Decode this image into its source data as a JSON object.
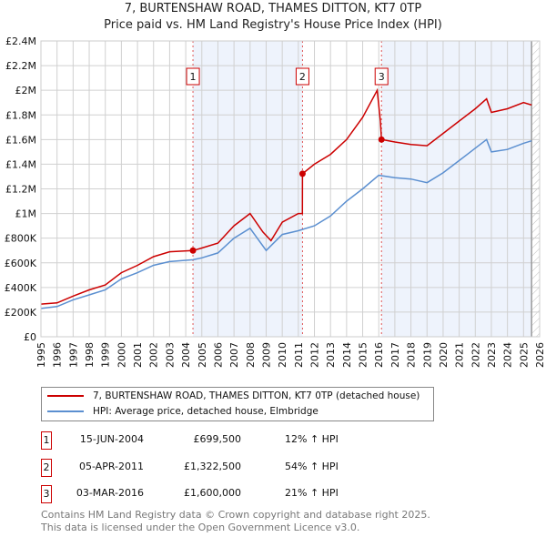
{
  "chart_data": {
    "type": "line",
    "title": "7, BURTENSHAW ROAD, THAMES DITTON, KT7 0TP",
    "subtitle": "Price paid vs. HM Land Registry's House Price Index (HPI)",
    "xlim": [
      1995,
      2026
    ],
    "ylim": [
      0,
      2400000
    ],
    "x_ticks": [
      "1995",
      "1996",
      "1997",
      "1998",
      "1999",
      "2000",
      "2001",
      "2002",
      "2003",
      "2004",
      "2005",
      "2006",
      "2007",
      "2008",
      "2009",
      "2010",
      "2011",
      "2012",
      "2013",
      "2014",
      "2015",
      "2016",
      "2017",
      "2018",
      "2019",
      "2020",
      "2021",
      "2022",
      "2023",
      "2024",
      "2025",
      "2026"
    ],
    "y_ticks": [
      {
        "v": 0,
        "label": "£0"
      },
      {
        "v": 200000,
        "label": "£200K"
      },
      {
        "v": 400000,
        "label": "£400K"
      },
      {
        "v": 600000,
        "label": "£600K"
      },
      {
        "v": 800000,
        "label": "£800K"
      },
      {
        "v": 1000000,
        "label": "£1M"
      },
      {
        "v": 1200000,
        "label": "£1.2M"
      },
      {
        "v": 1400000,
        "label": "£1.4M"
      },
      {
        "v": 1600000,
        "label": "£1.6M"
      },
      {
        "v": 1800000,
        "label": "£1.8M"
      },
      {
        "v": 2000000,
        "label": "£2M"
      },
      {
        "v": 2200000,
        "label": "£2.2M"
      },
      {
        "v": 2400000,
        "label": "£2.4M"
      }
    ],
    "grid": true,
    "series": [
      {
        "name": "7, BURTENSHAW ROAD, THAMES DITTON, KT7 0TP (detached house)",
        "color": "#cc0000",
        "x": [
          1995,
          1996,
          1997,
          1998,
          1999,
          2000,
          2001,
          2002,
          2003,
          2004.45,
          2005,
          2006,
          2007,
          2008,
          2008.8,
          2009.3,
          2010,
          2011,
          2011.25,
          2011.26,
          2012,
          2013,
          2014,
          2015,
          2015.9,
          2016.1,
          2016.17,
          2017,
          2018,
          2019,
          2020,
          2021,
          2022,
          2022.7,
          2023,
          2024,
          2025,
          2025.5
        ],
        "y": [
          265000,
          275000,
          330000,
          380000,
          420000,
          520000,
          580000,
          650000,
          690000,
          699500,
          720000,
          760000,
          900000,
          1000000,
          850000,
          780000,
          930000,
          1000000,
          1000000,
          1322500,
          1400000,
          1480000,
          1600000,
          1780000,
          2000000,
          1750000,
          1600000,
          1580000,
          1560000,
          1550000,
          1650000,
          1750000,
          1850000,
          1930000,
          1820000,
          1850000,
          1900000,
          1880000
        ]
      },
      {
        "name": "HPI: Average price, detached house, Elmbridge",
        "color": "#5b8fd0",
        "x": [
          1995,
          1996,
          1997,
          1998,
          1999,
          2000,
          2001,
          2002,
          2003,
          2004.45,
          2005,
          2006,
          2007,
          2008,
          2009,
          2010,
          2011,
          2012,
          2013,
          2014,
          2015,
          2016,
          2017,
          2018,
          2019,
          2020,
          2021,
          2022,
          2022.7,
          2023,
          2024,
          2025,
          2025.5
        ],
        "y": [
          230000,
          245000,
          300000,
          340000,
          380000,
          470000,
          520000,
          580000,
          610000,
          625000,
          640000,
          680000,
          800000,
          880000,
          700000,
          830000,
          860000,
          900000,
          980000,
          1100000,
          1200000,
          1310000,
          1290000,
          1280000,
          1250000,
          1330000,
          1430000,
          1530000,
          1600000,
          1500000,
          1520000,
          1570000,
          1590000
        ]
      }
    ],
    "sales": [
      {
        "label": "1",
        "x": 2004.45,
        "y": 699500
      },
      {
        "label": "2",
        "x": 2011.26,
        "y": 1322500
      },
      {
        "label": "3",
        "x": 2016.17,
        "y": 1600000
      }
    ],
    "shaded_ranges": [
      [
        2004.45,
        2011.26
      ],
      [
        2016.17,
        2025.5
      ]
    ],
    "hatched_from": 2025.5,
    "legend_placement": "below"
  },
  "transactions": [
    {
      "num": "1",
      "date": "15-JUN-2004",
      "price": "£699,500",
      "hpi": "12% ↑ HPI"
    },
    {
      "num": "2",
      "date": "05-APR-2011",
      "price": "£1,322,500",
      "hpi": "54% ↑ HPI"
    },
    {
      "num": "3",
      "date": "03-MAR-2016",
      "price": "£1,600,000",
      "hpi": "21% ↑ HPI"
    }
  ],
  "footer": [
    "Contains HM Land Registry data © Crown copyright and database right 2025.",
    "This data is licensed under the Open Government Licence v3.0."
  ]
}
